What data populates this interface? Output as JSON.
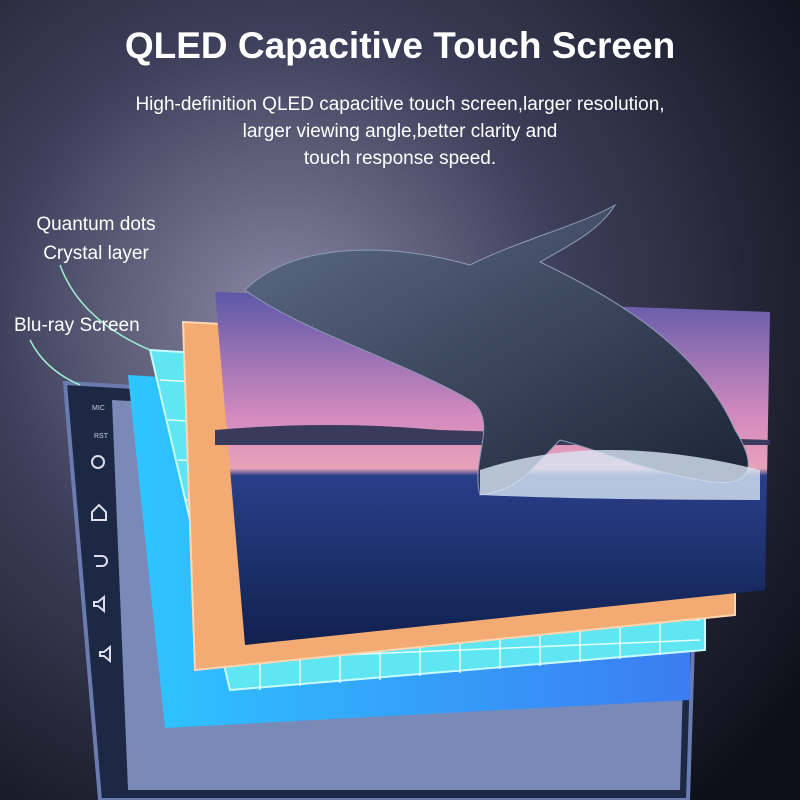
{
  "header": {
    "title": "QLED Capacitive Touch Screen",
    "subtitle": [
      "High-definition QLED capacitive touch screen,larger resolution,",
      "larger viewing angle,better clarity and",
      "touch response speed."
    ]
  },
  "labels": [
    "Quantum dots",
    "Crystal layer",
    "Blu-ray Screen"
  ],
  "device": {
    "buttons": [
      "MIC",
      "RST"
    ]
  }
}
